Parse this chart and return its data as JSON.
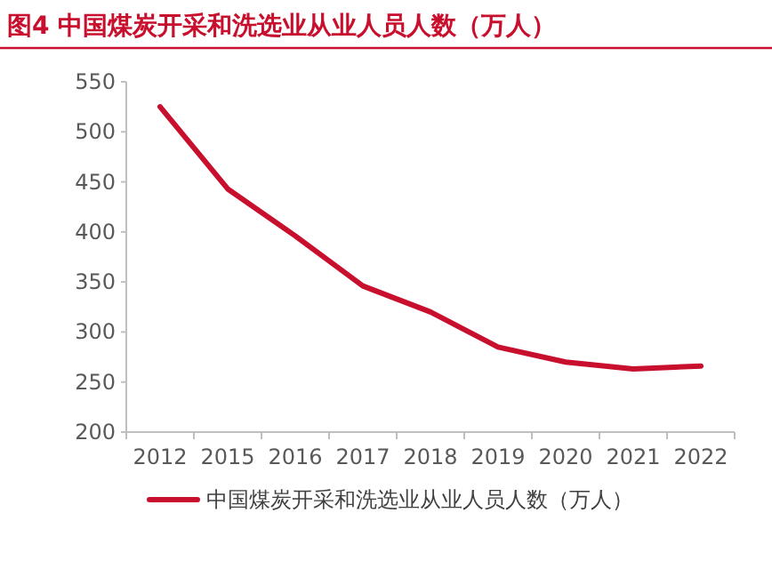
{
  "chart_data": {
    "type": "line",
    "title": "图4  中国煤炭开采和洗选业从业人员人数（万人）",
    "categories": [
      "2012",
      "2015",
      "2016",
      "2017",
      "2018",
      "2019",
      "2020",
      "2021",
      "2022"
    ],
    "series": [
      {
        "name": "中国煤炭开采和洗选业从业人员人数（万人）",
        "color": "#c8102e",
        "values": [
          525,
          443,
          396,
          346,
          320,
          285,
          270,
          263,
          266
        ]
      }
    ],
    "ylim": [
      200,
      550
    ],
    "yticks": [
      200,
      250,
      300,
      350,
      400,
      450,
      500,
      550
    ],
    "grid": false,
    "legend": "bottom",
    "marker": "none",
    "line_style": "solid"
  }
}
